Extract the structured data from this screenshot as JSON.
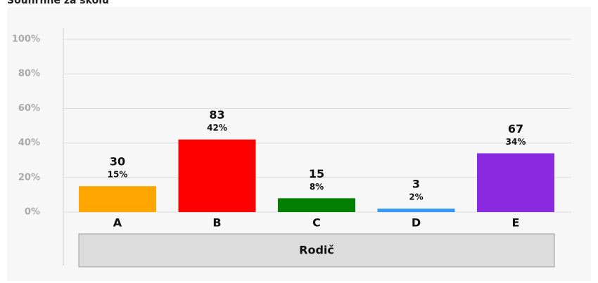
{
  "chart_data": {
    "type": "bar",
    "title": "Souhrnně za školu",
    "categories": [
      "A",
      "B",
      "C",
      "D",
      "E"
    ],
    "values": [
      15,
      42,
      8,
      2,
      34
    ],
    "value_labels": [
      "15%",
      "42%",
      "8%",
      "2%",
      "34%"
    ],
    "counts": [
      30,
      83,
      15,
      3,
      67
    ],
    "colors": [
      "#ffa500",
      "#ff0000",
      "#008000",
      "#3399ff",
      "#8a2be2"
    ],
    "group_label": "Rodič",
    "ylim": [
      0,
      100
    ],
    "yticks": [
      {
        "value": 0,
        "label": "0%"
      },
      {
        "value": 20,
        "label": "20%"
      },
      {
        "value": 40,
        "label": "40%"
      },
      {
        "value": 60,
        "label": "60%"
      },
      {
        "value": 80,
        "label": "80%"
      },
      {
        "value": 100,
        "label": "100%"
      }
    ],
    "grid": true
  }
}
